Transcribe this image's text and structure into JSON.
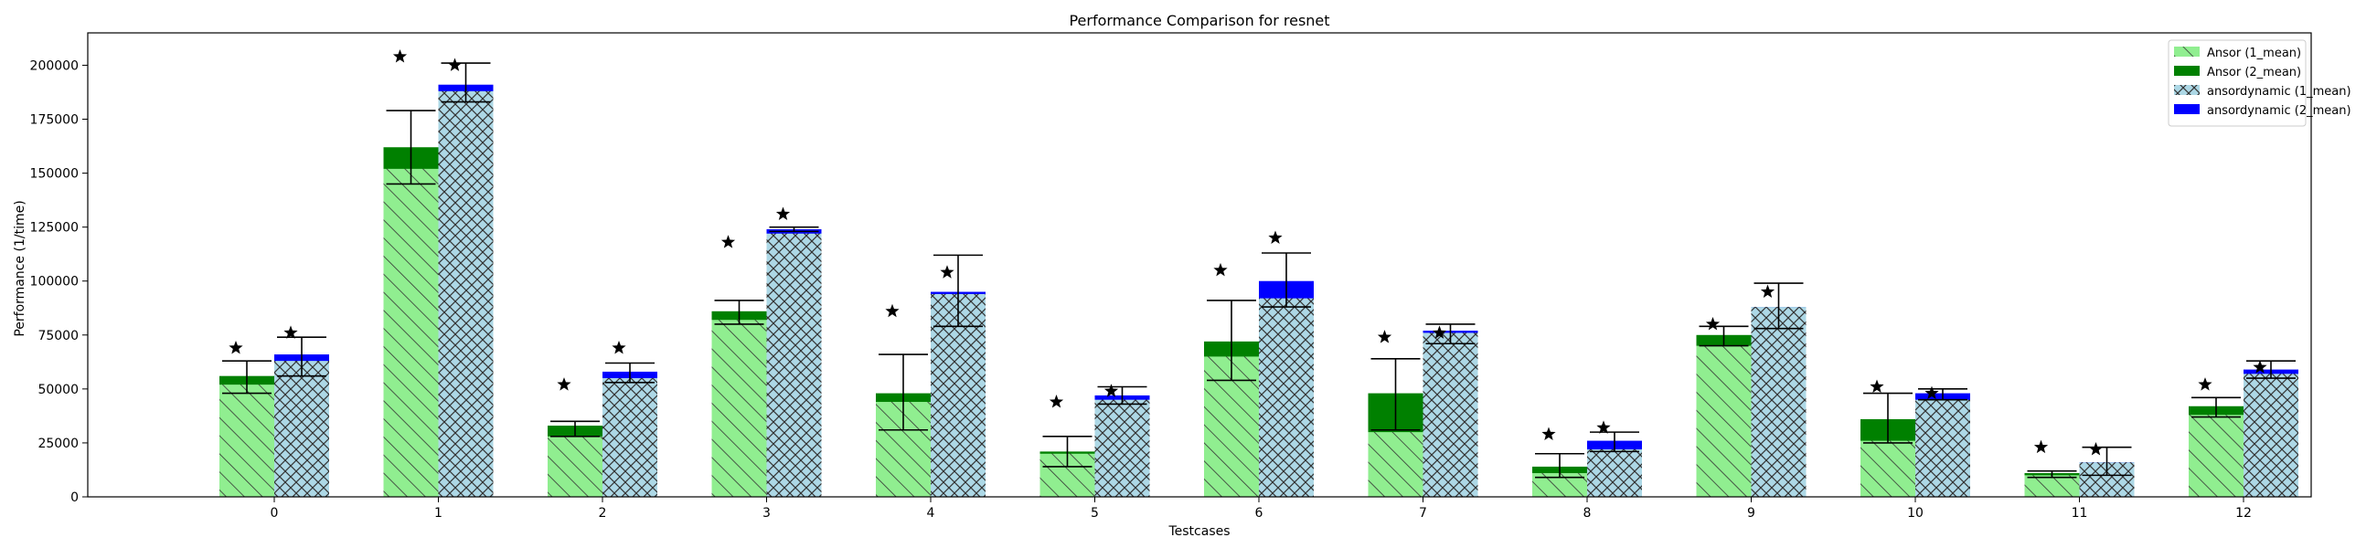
{
  "chart_data": {
    "type": "bar",
    "title": "Performance Comparison for resnet",
    "xlabel": "Testcases",
    "ylabel": "Performance (1/time)",
    "ylim": [
      0,
      215000
    ],
    "yticks": [
      0,
      25000,
      50000,
      75000,
      100000,
      125000,
      150000,
      175000,
      200000
    ],
    "ytick_labels": [
      "0",
      "25000",
      "50000",
      "75000",
      "100000",
      "125000",
      "150000",
      "175000",
      "200000"
    ],
    "categories": [
      "0",
      "1",
      "2",
      "3",
      "4",
      "5",
      "6",
      "7",
      "8",
      "9",
      "10",
      "11",
      "12"
    ],
    "legend_position": "top-right",
    "groups": [
      {
        "name": "Ansor",
        "series": [
          {
            "name": "Ansor (1_mean)",
            "style": "hatch-diag",
            "color": "#90ee90",
            "values": [
              52000,
              152000,
              28000,
              82000,
              44000,
              20000,
              65000,
              30000,
              11000,
              70000,
              26000,
              10000,
              38000
            ]
          },
          {
            "name": "Ansor (2_mean)",
            "style": "solid",
            "color": "#008000",
            "values": [
              56000,
              162000,
              33000,
              86000,
              48000,
              21000,
              72000,
              48000,
              14000,
              75000,
              36000,
              11000,
              42000
            ]
          }
        ],
        "error_low": [
          48000,
          145000,
          28000,
          80000,
          31000,
          14000,
          54000,
          31000,
          9000,
          70000,
          25000,
          9000,
          37000
        ],
        "error_high": [
          63000,
          179000,
          35000,
          91000,
          66000,
          28000,
          91000,
          64000,
          20000,
          79000,
          48000,
          12000,
          46000
        ],
        "best": [
          69000,
          204000,
          52000,
          118000,
          86000,
          44000,
          105000,
          74000,
          29000,
          80000,
          51000,
          23000,
          52000
        ]
      },
      {
        "name": "ansordynamic",
        "series": [
          {
            "name": "ansordynamic (1_mean)",
            "style": "hatch-cross",
            "color": "#add8e6",
            "values": [
              63000,
              188000,
              55000,
              122000,
              94000,
              45000,
              92000,
              76000,
              22000,
              88000,
              45000,
              16000,
              57000
            ]
          },
          {
            "name": "ansordynamic (2_mean)",
            "style": "solid",
            "color": "#0000ff",
            "values": [
              66000,
              191000,
              58000,
              124000,
              95000,
              47000,
              100000,
              77000,
              26000,
              88000,
              48000,
              16000,
              59000
            ]
          }
        ],
        "error_low": [
          56000,
          183000,
          53000,
          123000,
          79000,
          43000,
          88000,
          71000,
          21000,
          78000,
          45000,
          10000,
          55000
        ],
        "error_high": [
          74000,
          201000,
          62000,
          125000,
          112000,
          51000,
          113000,
          80000,
          30000,
          99000,
          50000,
          23000,
          63000
        ],
        "best": [
          76000,
          200000,
          69000,
          131000,
          104000,
          49000,
          120000,
          76000,
          32000,
          95000,
          48000,
          22000,
          60000
        ]
      }
    ]
  }
}
